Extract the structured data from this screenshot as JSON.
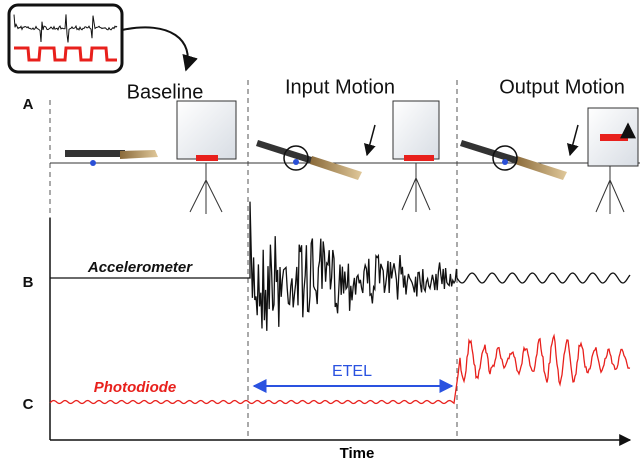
{
  "panels": {
    "a": "A",
    "b": "B",
    "c": "C"
  },
  "phases": [
    "Baseline",
    "Input Motion",
    "Output Motion"
  ],
  "signals": {
    "accelerometer": "Accelerometer",
    "photodiode": "Photodiode"
  },
  "interval": "ETEL",
  "x_axis": "Time"
}
